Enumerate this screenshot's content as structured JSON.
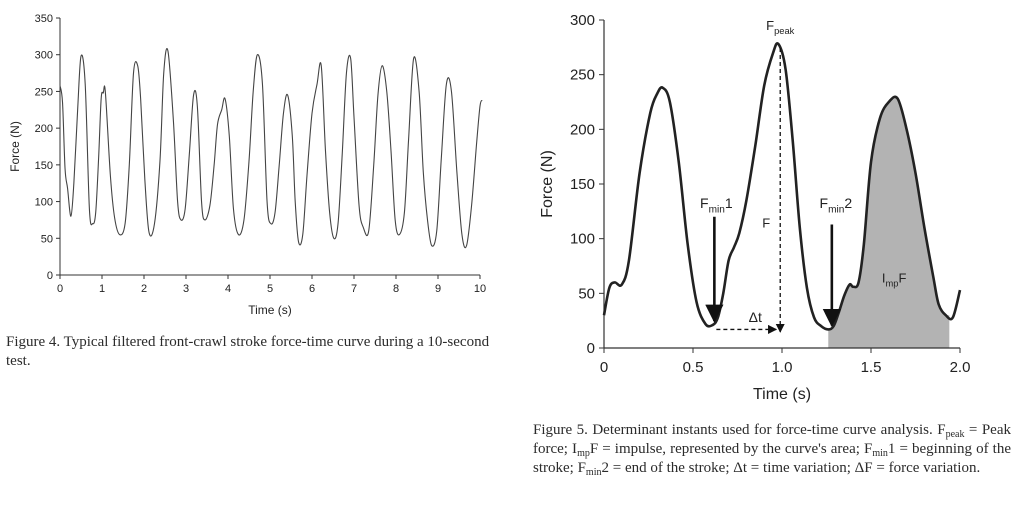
{
  "chart_data": [
    {
      "type": "line",
      "title": "",
      "xlabel": "Time (s)",
      "ylabel": "Force (N)",
      "xlim": [
        0,
        10
      ],
      "ylim": [
        0,
        350
      ],
      "xticks": [
        "0",
        "1",
        "2",
        "3",
        "4",
        "5",
        "6",
        "7",
        "8",
        "9",
        "10"
      ],
      "yticks": [
        "0",
        "50",
        "100",
        "150",
        "200",
        "250",
        "300",
        "350"
      ],
      "grid": false,
      "series": [
        {
          "name": "Force",
          "x": [
            0.0,
            0.06,
            0.12,
            0.18,
            0.26,
            0.33,
            0.42,
            0.5,
            0.6,
            0.7,
            0.78,
            0.85,
            0.92,
            0.98,
            1.03,
            1.08,
            1.2,
            1.3,
            1.42,
            1.55,
            1.65,
            1.75,
            1.85,
            1.92,
            2.02,
            2.12,
            2.25,
            2.38,
            2.47,
            2.57,
            2.7,
            2.8,
            2.88,
            2.98,
            3.08,
            3.18,
            3.27,
            3.37,
            3.45,
            3.57,
            3.67,
            3.75,
            3.85,
            3.93,
            4.03,
            4.13,
            4.25,
            4.38,
            4.5,
            4.6,
            4.7,
            4.82,
            4.93,
            5.02,
            5.12,
            5.22,
            5.32,
            5.42,
            5.53,
            5.6,
            5.68,
            5.78,
            5.88,
            6.0,
            6.12,
            6.22,
            6.32,
            6.42,
            6.52,
            6.62,
            6.72,
            6.82,
            6.92,
            7.0,
            7.12,
            7.22,
            7.35,
            7.47,
            7.57,
            7.67,
            7.78,
            7.88,
            7.98,
            8.08,
            8.2,
            8.3,
            8.42,
            8.55,
            8.65,
            8.75,
            8.85,
            8.97,
            9.08,
            9.2,
            9.32,
            9.45,
            9.57,
            9.68,
            9.8,
            9.92,
            10.0,
            10.05
          ],
          "values": [
            258,
            235,
            145,
            118,
            80,
            125,
            225,
            298,
            260,
            90,
            70,
            85,
            160,
            240,
            248,
            249,
            135,
            78,
            55,
            70,
            150,
            275,
            285,
            240,
            130,
            58,
            70,
            155,
            275,
            305,
            210,
            100,
            75,
            90,
            165,
            245,
            230,
            100,
            75,
            95,
            150,
            205,
            225,
            240,
            190,
            90,
            55,
            75,
            155,
            250,
            300,
            260,
            100,
            70,
            85,
            150,
            220,
            245,
            190,
            100,
            45,
            55,
            135,
            220,
            260,
            285,
            170,
            85,
            50,
            70,
            165,
            275,
            295,
            215,
            95,
            65,
            60,
            150,
            245,
            285,
            250,
            170,
            75,
            55,
            85,
            185,
            295,
            250,
            140,
            75,
            40,
            60,
            160,
            260,
            250,
            140,
            55,
            40,
            95,
            180,
            230,
            238
          ]
        }
      ]
    },
    {
      "type": "line",
      "title": "",
      "xlabel": "Time (s)",
      "ylabel": "Force (N)",
      "xlim": [
        0,
        2.0
      ],
      "ylim": [
        0,
        300
      ],
      "xticks": [
        "0",
        "0.5",
        "1.0",
        "1.5",
        "2.0"
      ],
      "yticks": [
        "0",
        "50",
        "100",
        "150",
        "200",
        "250",
        "300"
      ],
      "grid": false,
      "series": [
        {
          "name": "Force",
          "x": [
            0.0,
            0.03,
            0.06,
            0.1,
            0.14,
            0.2,
            0.26,
            0.3,
            0.33,
            0.37,
            0.42,
            0.47,
            0.52,
            0.57,
            0.61,
            0.64,
            0.67,
            0.7,
            0.73,
            0.76,
            0.8,
            0.85,
            0.9,
            0.95,
            0.98,
            1.02,
            1.06,
            1.1,
            1.14,
            1.18,
            1.22,
            1.26,
            1.29,
            1.32,
            1.35,
            1.38,
            1.4,
            1.43,
            1.46,
            1.5,
            1.55,
            1.6,
            1.65,
            1.7,
            1.75,
            1.8,
            1.85,
            1.88,
            1.92,
            1.96,
            2.0
          ],
          "values": [
            30,
            55,
            60,
            58,
            80,
            160,
            215,
            233,
            238,
            225,
            170,
            95,
            42,
            22,
            21,
            28,
            50,
            80,
            92,
            105,
            135,
            185,
            240,
            270,
            278,
            255,
            190,
            110,
            55,
            28,
            20,
            17,
            20,
            33,
            48,
            58,
            56,
            60,
            95,
            170,
            210,
            225,
            228,
            200,
            160,
            110,
            65,
            40,
            30,
            28,
            53
          ]
        }
      ],
      "shaded_region": {
        "x_from": 1.26,
        "x_to": 1.94,
        "label": "ImpF"
      },
      "annotations": {
        "fpeak": {
          "main": "F",
          "sub": "peak",
          "x": 0.99,
          "y": 278
        },
        "fmin1": {
          "main": "F",
          "sub": "min",
          "tail": "1",
          "x": 0.62,
          "y": 21
        },
        "fmin2": {
          "main": "F",
          "sub": "min",
          "tail": "2",
          "x": 1.28,
          "y": 17
        },
        "impf": {
          "main": "I",
          "sub": "mp",
          "tail": "F"
        },
        "delta_f": "F",
        "delta_t": "Δt"
      }
    }
  ],
  "captions": {
    "fig4": "Figure 4. Typical filtered front-crawl stroke force-time curve during a 10-second test.",
    "fig5": {
      "p1": "Figure 5. Determinant instants used for force-time curve analysis. F",
      "p1_sub": "peak",
      "p2": " = Peak force; I",
      "p2_sub": "mp",
      "p3": "F = impulse, represented by the curve's area; F",
      "p3_sub": "min",
      "p4": "1 = beginning of the stroke; F",
      "p4_sub": "min",
      "p5": "2 = end of the stroke; Δt = time variation; ΔF = force variation."
    }
  }
}
